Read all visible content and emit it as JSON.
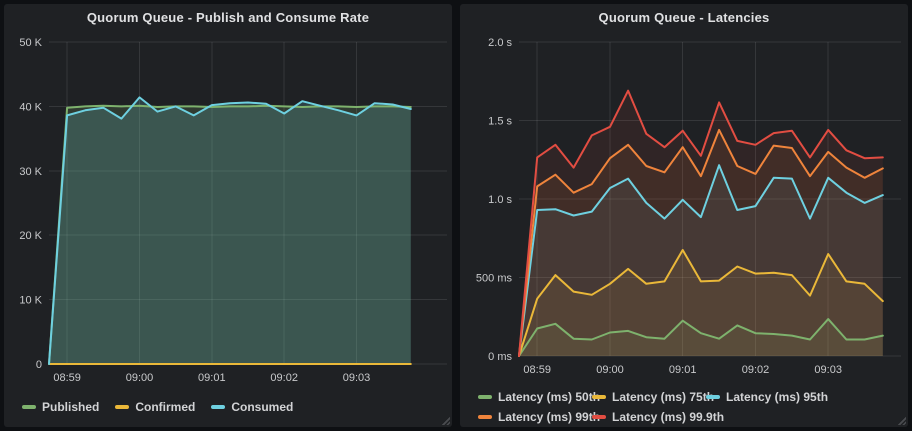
{
  "page": {
    "background": "#0e1013",
    "panel_background": "#1f2124",
    "title_color": "#e0e1e3",
    "tick_color": "#c9cacc",
    "legend_text_color": "#d2d3d5",
    "grid_color": "rgba(255,255,255,0.10)"
  },
  "panels": [
    {
      "title": "Quorum Queue - Publish and Consume Rate",
      "legend_rows": 1
    },
    {
      "title": "Quorum Queue - Latencies",
      "legend_rows": 2
    }
  ],
  "chart_data": [
    {
      "type": "line",
      "title": "Quorum Queue - Publish and Consume Rate",
      "xlabel": "",
      "ylabel": "",
      "grid": true,
      "legend_position": "bottom",
      "ylim": [
        0,
        50000
      ],
      "y_ticks": [
        {
          "value": 0,
          "label": "0"
        },
        {
          "value": 10000,
          "label": "10 K"
        },
        {
          "value": 20000,
          "label": "20 K"
        },
        {
          "value": 30000,
          "label": "30 K"
        },
        {
          "value": 40000,
          "label": "40 K"
        },
        {
          "value": 50000,
          "label": "50 K"
        }
      ],
      "x_labels": [
        "08:59",
        "09:00",
        "09:01",
        "09:02",
        "09:03"
      ],
      "x_label_indices": [
        1,
        5,
        9,
        13,
        17
      ],
      "x_domain_max": 22,
      "x_interval_seconds": 15,
      "fill_opacity": 0.18,
      "series": [
        {
          "name": "Published",
          "color": "#7EB26D",
          "values": [
            0,
            39800,
            40000,
            40100,
            40000,
            40100,
            39900,
            40000,
            40000,
            39900,
            40000,
            40000,
            40100,
            40000,
            39900,
            40000,
            40000,
            39900,
            40000,
            40000,
            39900
          ]
        },
        {
          "name": "Confirmed",
          "color": "#EAB839",
          "values": [
            0,
            0,
            0,
            0,
            0,
            0,
            0,
            0,
            0,
            0,
            0,
            0,
            0,
            0,
            0,
            0,
            0,
            0,
            0,
            0,
            0
          ]
        },
        {
          "name": "Consumed",
          "color": "#6ED0E0",
          "values": [
            0,
            38600,
            39400,
            39800,
            38100,
            41400,
            39200,
            40000,
            38600,
            40200,
            40500,
            40600,
            40400,
            38900,
            40800,
            40100,
            39400,
            38600,
            40500,
            40300,
            39600
          ]
        }
      ]
    },
    {
      "type": "line",
      "title": "Quorum Queue - Latencies",
      "xlabel": "",
      "ylabel": "",
      "grid": true,
      "legend_position": "bottom",
      "ylim": [
        0,
        2000
      ],
      "y_ticks": [
        {
          "value": 0,
          "label": "0 ms"
        },
        {
          "value": 500,
          "label": "500 ms"
        },
        {
          "value": 1000,
          "label": "1.0 s"
        },
        {
          "value": 1500,
          "label": "1.5 s"
        },
        {
          "value": 2000,
          "label": "2.0 s"
        }
      ],
      "x_labels": [
        "08:59",
        "09:00",
        "09:01",
        "09:02",
        "09:03"
      ],
      "x_label_indices": [
        1,
        5,
        9,
        13,
        17
      ],
      "x_domain_max": 21,
      "x_interval_seconds": 15,
      "fill_opacity": 0.09,
      "series": [
        {
          "name": "Latency (ms) 50th",
          "color": "#7EB26D",
          "values": [
            0,
            175,
            205,
            110,
            105,
            150,
            160,
            120,
            110,
            225,
            145,
            110,
            195,
            145,
            140,
            130,
            105,
            235,
            105,
            105,
            130
          ]
        },
        {
          "name": "Latency (ms) 75th",
          "color": "#EAB839",
          "values": [
            0,
            365,
            515,
            410,
            390,
            460,
            555,
            460,
            475,
            675,
            475,
            480,
            570,
            525,
            530,
            515,
            385,
            650,
            475,
            460,
            350
          ]
        },
        {
          "name": "Latency (ms) 95th",
          "color": "#6ED0E0",
          "values": [
            0,
            930,
            935,
            895,
            920,
            1070,
            1130,
            975,
            875,
            995,
            885,
            1215,
            930,
            955,
            1135,
            1130,
            875,
            1135,
            1040,
            975,
            1025
          ]
        },
        {
          "name": "Latency (ms) 99th",
          "color": "#EF843C",
          "values": [
            0,
            1080,
            1155,
            1040,
            1095,
            1260,
            1345,
            1210,
            1170,
            1330,
            1145,
            1440,
            1210,
            1160,
            1340,
            1325,
            1145,
            1300,
            1200,
            1135,
            1195
          ]
        },
        {
          "name": "Latency (ms) 99.9th",
          "color": "#E24D42",
          "values": [
            0,
            1265,
            1345,
            1200,
            1405,
            1460,
            1690,
            1415,
            1330,
            1435,
            1275,
            1615,
            1370,
            1345,
            1420,
            1435,
            1265,
            1440,
            1310,
            1260,
            1265
          ]
        }
      ]
    }
  ]
}
